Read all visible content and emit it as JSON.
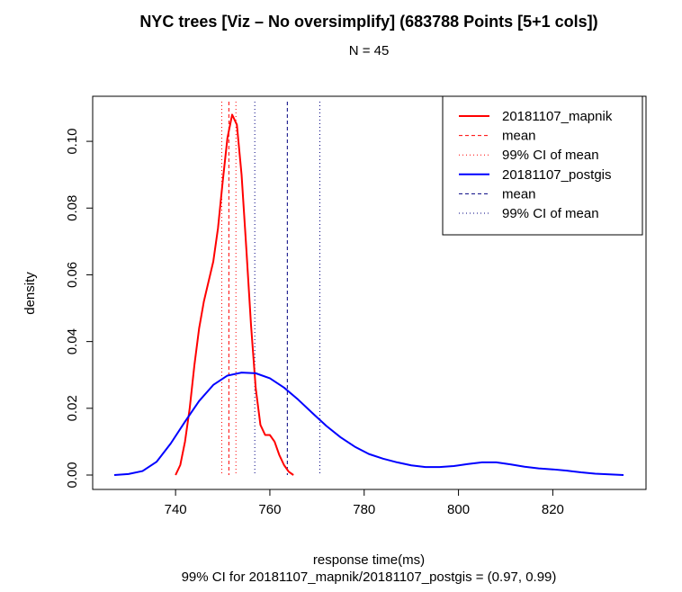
{
  "chart_data": {
    "type": "line",
    "title": "NYC trees [Viz – No oversimplify] (683788 Points [5+1 cols])",
    "subtitle": "N = 45",
    "xlabel": "response time(ms)",
    "ylabel": "density",
    "footnote": "99% CI for 20181107_mapnik/20181107_postgis = (0.97, 0.99)",
    "xlim": [
      727,
      835
    ],
    "ylim": [
      0,
      0.11
    ],
    "x_ticks": [
      740,
      760,
      780,
      800,
      820
    ],
    "y_ticks": [
      0.0,
      0.02,
      0.04,
      0.06,
      0.08,
      0.1
    ],
    "y_tick_labels": [
      "0.00",
      "0.02",
      "0.04",
      "0.06",
      "0.08",
      "0.10"
    ],
    "grid": false,
    "legend_position": "top-right",
    "series": [
      {
        "name": "20181107_mapnik",
        "color": "#ff0000",
        "points": [
          [
            740,
            0.0
          ],
          [
            741,
            0.003
          ],
          [
            742,
            0.01
          ],
          [
            743,
            0.02
          ],
          [
            744,
            0.033
          ],
          [
            745,
            0.044
          ],
          [
            746,
            0.052
          ],
          [
            747,
            0.058
          ],
          [
            748,
            0.064
          ],
          [
            749,
            0.074
          ],
          [
            750,
            0.088
          ],
          [
            751,
            0.101
          ],
          [
            752,
            0.108
          ],
          [
            753,
            0.105
          ],
          [
            754,
            0.09
          ],
          [
            755,
            0.068
          ],
          [
            756,
            0.045
          ],
          [
            757,
            0.026
          ],
          [
            758,
            0.015
          ],
          [
            759,
            0.012
          ],
          [
            760,
            0.012
          ],
          [
            761,
            0.01
          ],
          [
            762,
            0.006
          ],
          [
            763,
            0.003
          ],
          [
            764,
            0.001
          ],
          [
            765,
            0.0
          ]
        ],
        "mean": 751.3,
        "ci": [
          749.8,
          752.8
        ]
      },
      {
        "name": "20181107_postgis",
        "color": "#0000ff",
        "points": [
          [
            727,
            0.0
          ],
          [
            730,
            0.0003
          ],
          [
            733,
            0.0012
          ],
          [
            736,
            0.004
          ],
          [
            739,
            0.0095
          ],
          [
            742,
            0.016
          ],
          [
            745,
            0.0222
          ],
          [
            748,
            0.027
          ],
          [
            751,
            0.0298
          ],
          [
            754,
            0.0307
          ],
          [
            757,
            0.0305
          ],
          [
            760,
            0.029
          ],
          [
            763,
            0.0262
          ],
          [
            766,
            0.0226
          ],
          [
            769,
            0.0186
          ],
          [
            772,
            0.0147
          ],
          [
            775,
            0.0113
          ],
          [
            778,
            0.0085
          ],
          [
            781,
            0.0063
          ],
          [
            784,
            0.0049
          ],
          [
            787,
            0.0038
          ],
          [
            790,
            0.0029
          ],
          [
            793,
            0.0024
          ],
          [
            796,
            0.0024
          ],
          [
            799,
            0.0027
          ],
          [
            802,
            0.0033
          ],
          [
            805,
            0.0038
          ],
          [
            808,
            0.0038
          ],
          [
            811,
            0.0032
          ],
          [
            814,
            0.0025
          ],
          [
            817,
            0.002
          ],
          [
            820,
            0.0017
          ],
          [
            823,
            0.0013
          ],
          [
            826,
            0.0008
          ],
          [
            829,
            0.0004
          ],
          [
            832,
            0.0002
          ],
          [
            835,
            0.0
          ]
        ],
        "mean": 763.7,
        "ci": [
          756.8,
          770.6
        ]
      }
    ],
    "legend": [
      {
        "label": "20181107_mapnik",
        "color": "#ff0000",
        "style": "solid"
      },
      {
        "label": "mean",
        "color": "#ff0000",
        "style": "dashed"
      },
      {
        "label": "99% CI  of mean",
        "color": "#ff0000",
        "style": "dotted"
      },
      {
        "label": "20181107_postgis",
        "color": "#0000ff",
        "style": "solid"
      },
      {
        "label": "mean",
        "color": "#000080",
        "style": "dashed"
      },
      {
        "label": "99% CI  of mean",
        "color": "#000080",
        "style": "dotted"
      }
    ]
  }
}
